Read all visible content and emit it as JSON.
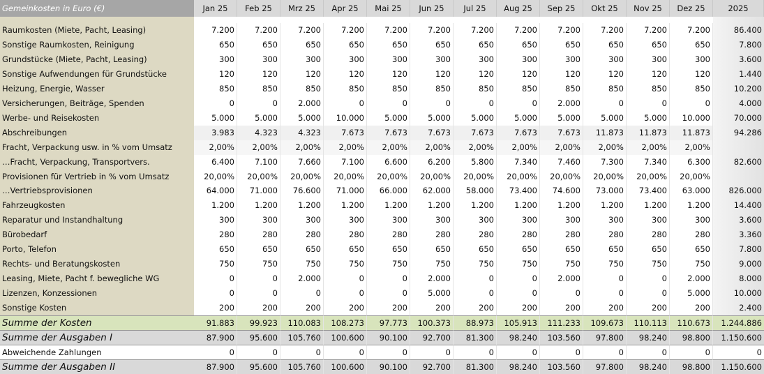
{
  "header": {
    "title": "Gemeinkosten in Euro (€)",
    "months": [
      "Jan 25",
      "Feb 25",
      "Mrz 25",
      "Apr 25",
      "Mai 25",
      "Jun 25",
      "Jul 25",
      "Aug 25",
      "Sep 25",
      "Okt 25",
      "Nov 25",
      "Dez 25"
    ],
    "total": "2025"
  },
  "rows": [
    {
      "label": "Raumkosten (Miete, Pacht, Leasing)",
      "months": [
        "7.200",
        "7.200",
        "7.200",
        "7.200",
        "7.200",
        "7.200",
        "7.200",
        "7.200",
        "7.200",
        "7.200",
        "7.200",
        "7.200"
      ],
      "total": "86.400"
    },
    {
      "label": "Sonstige Raumkosten, Reinigung",
      "months": [
        "650",
        "650",
        "650",
        "650",
        "650",
        "650",
        "650",
        "650",
        "650",
        "650",
        "650",
        "650"
      ],
      "total": "7.800"
    },
    {
      "label": "Grundstücke (Miete, Pacht, Leasing)",
      "months": [
        "300",
        "300",
        "300",
        "300",
        "300",
        "300",
        "300",
        "300",
        "300",
        "300",
        "300",
        "300"
      ],
      "total": "3.600"
    },
    {
      "label": "Sonstige Aufwendungen für Grundstücke",
      "months": [
        "120",
        "120",
        "120",
        "120",
        "120",
        "120",
        "120",
        "120",
        "120",
        "120",
        "120",
        "120"
      ],
      "total": "1.440"
    },
    {
      "label": "Heizung, Energie, Wasser",
      "months": [
        "850",
        "850",
        "850",
        "850",
        "850",
        "850",
        "850",
        "850",
        "850",
        "850",
        "850",
        "850"
      ],
      "total": "10.200"
    },
    {
      "label": "Versicherungen, Beiträge, Spenden",
      "months": [
        "0",
        "0",
        "2.000",
        "0",
        "0",
        "0",
        "0",
        "0",
        "2.000",
        "0",
        "0",
        "0"
      ],
      "total": "4.000"
    },
    {
      "label": "Werbe- und Reisekosten",
      "months": [
        "5.000",
        "5.000",
        "5.000",
        "10.000",
        "5.000",
        "5.000",
        "5.000",
        "5.000",
        "5.000",
        "5.000",
        "5.000",
        "10.000"
      ],
      "total": "70.000"
    },
    {
      "label": "Abschreibungen",
      "months": [
        "3.983",
        "4.323",
        "4.323",
        "7.673",
        "7.673",
        "7.673",
        "7.673",
        "7.673",
        "7.673",
        "11.873",
        "11.873",
        "11.873"
      ],
      "total": "94.286"
    },
    {
      "label": "Fracht, Verpackung usw. in % vom Umsatz",
      "months": [
        "2,00%",
        "2,00%",
        "2,00%",
        "2,00%",
        "2,00%",
        "2,00%",
        "2,00%",
        "2,00%",
        "2,00%",
        "2,00%",
        "2,00%",
        "2,00%"
      ]
    },
    {
      "label": "…Fracht, Verpackung, Transportvers.",
      "months": [
        "6.400",
        "7.100",
        "7.660",
        "7.100",
        "6.600",
        "6.200",
        "5.800",
        "7.340",
        "7.460",
        "7.300",
        "7.340",
        "6.300"
      ],
      "total": "82.600"
    },
    {
      "label": "Provisionen für Vertrieb in % vom Umsatz",
      "months": [
        "20,00%",
        "20,00%",
        "20,00%",
        "20,00%",
        "20,00%",
        "20,00%",
        "20,00%",
        "20,00%",
        "20,00%",
        "20,00%",
        "20,00%",
        "20,00%"
      ]
    },
    {
      "label": "…Vertriebsprovisionen",
      "months": [
        "64.000",
        "71.000",
        "76.600",
        "71.000",
        "66.000",
        "62.000",
        "58.000",
        "73.400",
        "74.600",
        "73.000",
        "73.400",
        "63.000"
      ],
      "total": "826.000"
    },
    {
      "label": "Fahrzeugkosten",
      "months": [
        "1.200",
        "1.200",
        "1.200",
        "1.200",
        "1.200",
        "1.200",
        "1.200",
        "1.200",
        "1.200",
        "1.200",
        "1.200",
        "1.200"
      ],
      "total": "14.400"
    },
    {
      "label": "Reparatur und Instandhaltung",
      "months": [
        "300",
        "300",
        "300",
        "300",
        "300",
        "300",
        "300",
        "300",
        "300",
        "300",
        "300",
        "300"
      ],
      "total": "3.600"
    },
    {
      "label": "Bürobedarf",
      "months": [
        "280",
        "280",
        "280",
        "280",
        "280",
        "280",
        "280",
        "280",
        "280",
        "280",
        "280",
        "280"
      ],
      "total": "3.360"
    },
    {
      "label": "Porto, Telefon",
      "months": [
        "650",
        "650",
        "650",
        "650",
        "650",
        "650",
        "650",
        "650",
        "650",
        "650",
        "650",
        "650"
      ],
      "total": "7.800"
    },
    {
      "label": "Rechts- und Beratungskosten",
      "months": [
        "750",
        "750",
        "750",
        "750",
        "750",
        "750",
        "750",
        "750",
        "750",
        "750",
        "750",
        "750"
      ],
      "total": "9.000"
    },
    {
      "label": "Leasing, Miete, Pacht f. bewegliche WG",
      "months": [
        "0",
        "0",
        "2.000",
        "0",
        "0",
        "2.000",
        "0",
        "0",
        "2.000",
        "0",
        "0",
        "2.000"
      ],
      "total": "8.000"
    },
    {
      "label": "Lizenzen, Konzessionen",
      "months": [
        "0",
        "0",
        "0",
        "0",
        "0",
        "5.000",
        "0",
        "0",
        "0",
        "0",
        "0",
        "5.000"
      ],
      "total": "10.000"
    },
    {
      "label": "Sonstige Kosten",
      "months": [
        "200",
        "200",
        "200",
        "200",
        "200",
        "200",
        "200",
        "200",
        "200",
        "200",
        "200",
        "200"
      ],
      "total": "2.400"
    }
  ],
  "summary": [
    {
      "label": "Summe der Kosten",
      "months": [
        "91.883",
        "99.923",
        "110.083",
        "108.273",
        "97.773",
        "100.373",
        "88.973",
        "105.913",
        "111.233",
        "109.673",
        "110.113",
        "110.673"
      ],
      "total": "1.244.886"
    },
    {
      "label": "Summe der Ausgaben I",
      "months": [
        "87.900",
        "95.600",
        "105.760",
        "100.600",
        "90.100",
        "92.700",
        "81.300",
        "98.240",
        "103.560",
        "97.800",
        "98.240",
        "98.800"
      ],
      "total": "1.150.600"
    },
    {
      "label": "Abweichende Zahlungen",
      "months": [
        "0",
        "0",
        "0",
        "0",
        "0",
        "0",
        "0",
        "0",
        "0",
        "0",
        "0",
        "0"
      ],
      "total": "0"
    },
    {
      "label": "Summe der Ausgaben II",
      "months": [
        "87.900",
        "95.600",
        "105.760",
        "100.600",
        "90.100",
        "92.700",
        "81.300",
        "98.240",
        "103.560",
        "97.800",
        "98.240",
        "98.800"
      ],
      "total": "1.150.600"
    }
  ]
}
